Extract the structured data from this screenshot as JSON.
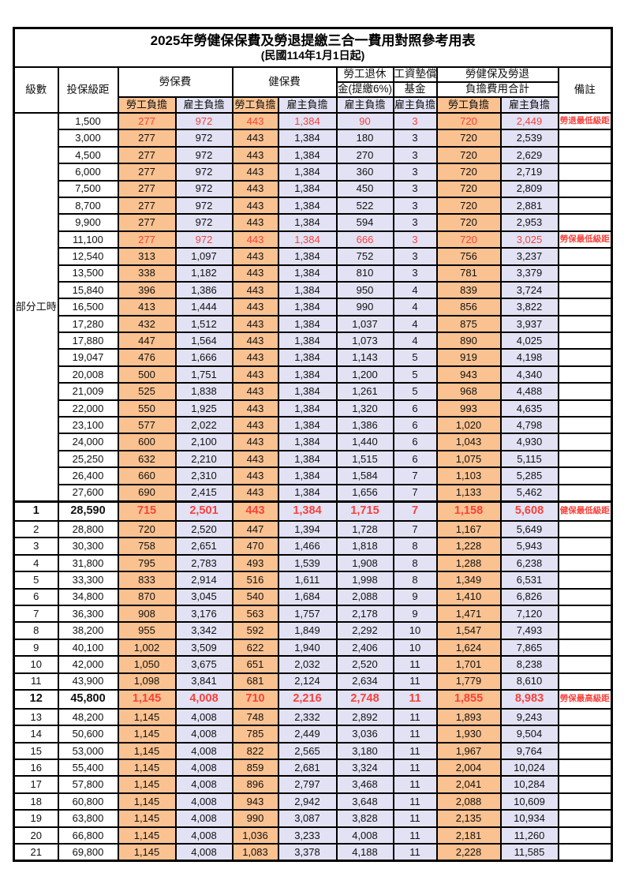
{
  "title": {
    "line1": "2025年勞健保保費及勞退提繳三合一費用對照參考用表",
    "line2": "(民國114年1月1日起)"
  },
  "header": {
    "grade": "級數",
    "bracket": "投保級距",
    "labor_insurance": "勞保費",
    "health_insurance": "健保費",
    "pension_line1": "勞工退休",
    "pension_line2": "金(提繳6%)",
    "wage_fund_line1": "工資墊償",
    "wage_fund_line2": "基金",
    "total_line1": "勞健保及勞退",
    "total_line2": "負擔費用合計",
    "remark": "備註",
    "employee_share": "勞工負擔",
    "employer_share": "雇主負擔"
  },
  "colors": {
    "employee_bg": "#FAC291",
    "employer_bg": "#E2E2F4",
    "highlight_text": "#F8423C",
    "grid": "#000000"
  },
  "part_time_label": "部分工時",
  "rows": [
    {
      "g": "部分工時",
      "gspan": 23,
      "b": "1,500",
      "v": [
        "277",
        "972",
        "443",
        "1,384",
        "90",
        "3",
        "720",
        "2,449"
      ],
      "r": "勞退最低級距",
      "hl": true
    },
    {
      "b": "3,000",
      "v": [
        "277",
        "972",
        "443",
        "1,384",
        "180",
        "3",
        "720",
        "2,539"
      ],
      "r": ""
    },
    {
      "b": "4,500",
      "v": [
        "277",
        "972",
        "443",
        "1,384",
        "270",
        "3",
        "720",
        "2,629"
      ],
      "r": ""
    },
    {
      "b": "6,000",
      "v": [
        "277",
        "972",
        "443",
        "1,384",
        "360",
        "3",
        "720",
        "2,719"
      ],
      "r": ""
    },
    {
      "b": "7,500",
      "v": [
        "277",
        "972",
        "443",
        "1,384",
        "450",
        "3",
        "720",
        "2,809"
      ],
      "r": ""
    },
    {
      "b": "8,700",
      "v": [
        "277",
        "972",
        "443",
        "1,384",
        "522",
        "3",
        "720",
        "2,881"
      ],
      "r": ""
    },
    {
      "b": "9,900",
      "v": [
        "277",
        "972",
        "443",
        "1,384",
        "594",
        "3",
        "720",
        "2,953"
      ],
      "r": ""
    },
    {
      "b": "11,100",
      "v": [
        "277",
        "972",
        "443",
        "1,384",
        "666",
        "3",
        "720",
        "3,025"
      ],
      "r": "勞保最低級距",
      "hl": true
    },
    {
      "b": "12,540",
      "v": [
        "313",
        "1,097",
        "443",
        "1,384",
        "752",
        "3",
        "756",
        "3,237"
      ],
      "r": ""
    },
    {
      "b": "13,500",
      "v": [
        "338",
        "1,182",
        "443",
        "1,384",
        "810",
        "3",
        "781",
        "3,379"
      ],
      "r": ""
    },
    {
      "b": "15,840",
      "v": [
        "396",
        "1,386",
        "443",
        "1,384",
        "950",
        "4",
        "839",
        "3,724"
      ],
      "r": ""
    },
    {
      "b": "16,500",
      "v": [
        "413",
        "1,444",
        "443",
        "1,384",
        "990",
        "4",
        "856",
        "3,822"
      ],
      "r": ""
    },
    {
      "b": "17,280",
      "v": [
        "432",
        "1,512",
        "443",
        "1,384",
        "1,037",
        "4",
        "875",
        "3,937"
      ],
      "r": ""
    },
    {
      "b": "17,880",
      "v": [
        "447",
        "1,564",
        "443",
        "1,384",
        "1,073",
        "4",
        "890",
        "4,025"
      ],
      "r": ""
    },
    {
      "b": "19,047",
      "v": [
        "476",
        "1,666",
        "443",
        "1,384",
        "1,143",
        "5",
        "919",
        "4,198"
      ],
      "r": ""
    },
    {
      "b": "20,008",
      "v": [
        "500",
        "1,751",
        "443",
        "1,384",
        "1,200",
        "5",
        "943",
        "4,340"
      ],
      "r": ""
    },
    {
      "b": "21,009",
      "v": [
        "525",
        "1,838",
        "443",
        "1,384",
        "1,261",
        "5",
        "968",
        "4,488"
      ],
      "r": ""
    },
    {
      "b": "22,000",
      "v": [
        "550",
        "1,925",
        "443",
        "1,384",
        "1,320",
        "6",
        "993",
        "4,635"
      ],
      "r": ""
    },
    {
      "b": "23,100",
      "v": [
        "577",
        "2,022",
        "443",
        "1,384",
        "1,386",
        "6",
        "1,020",
        "4,798"
      ],
      "r": ""
    },
    {
      "b": "24,000",
      "v": [
        "600",
        "2,100",
        "443",
        "1,384",
        "1,440",
        "6",
        "1,043",
        "4,930"
      ],
      "r": ""
    },
    {
      "b": "25,250",
      "v": [
        "632",
        "2,210",
        "443",
        "1,384",
        "1,515",
        "6",
        "1,075",
        "5,115"
      ],
      "r": ""
    },
    {
      "b": "26,400",
      "v": [
        "660",
        "2,310",
        "443",
        "1,384",
        "1,584",
        "7",
        "1,103",
        "5,285"
      ],
      "r": ""
    },
    {
      "b": "27,600",
      "v": [
        "690",
        "2,415",
        "443",
        "1,384",
        "1,656",
        "7",
        "1,133",
        "5,462"
      ],
      "r": ""
    },
    {
      "g": "1",
      "b": "28,590",
      "v": [
        "715",
        "2,501",
        "443",
        "1,384",
        "1,715",
        "7",
        "1,158",
        "5,608"
      ],
      "r": "健保最低級距",
      "hl": true,
      "bold": true,
      "thick": true
    },
    {
      "g": "2",
      "b": "28,800",
      "v": [
        "720",
        "2,520",
        "447",
        "1,394",
        "1,728",
        "7",
        "1,167",
        "5,649"
      ],
      "r": ""
    },
    {
      "g": "3",
      "b": "30,300",
      "v": [
        "758",
        "2,651",
        "470",
        "1,466",
        "1,818",
        "8",
        "1,228",
        "5,943"
      ],
      "r": ""
    },
    {
      "g": "4",
      "b": "31,800",
      "v": [
        "795",
        "2,783",
        "493",
        "1,539",
        "1,908",
        "8",
        "1,288",
        "6,238"
      ],
      "r": ""
    },
    {
      "g": "5",
      "b": "33,300",
      "v": [
        "833",
        "2,914",
        "516",
        "1,611",
        "1,998",
        "8",
        "1,349",
        "6,531"
      ],
      "r": ""
    },
    {
      "g": "6",
      "b": "34,800",
      "v": [
        "870",
        "3,045",
        "540",
        "1,684",
        "2,088",
        "9",
        "1,410",
        "6,826"
      ],
      "r": ""
    },
    {
      "g": "7",
      "b": "36,300",
      "v": [
        "908",
        "3,176",
        "563",
        "1,757",
        "2,178",
        "9",
        "1,471",
        "7,120"
      ],
      "r": ""
    },
    {
      "g": "8",
      "b": "38,200",
      "v": [
        "955",
        "3,342",
        "592",
        "1,849",
        "2,292",
        "10",
        "1,547",
        "7,493"
      ],
      "r": ""
    },
    {
      "g": "9",
      "b": "40,100",
      "v": [
        "1,002",
        "3,509",
        "622",
        "1,940",
        "2,406",
        "10",
        "1,624",
        "7,865"
      ],
      "r": ""
    },
    {
      "g": "10",
      "b": "42,000",
      "v": [
        "1,050",
        "3,675",
        "651",
        "2,032",
        "2,520",
        "11",
        "1,701",
        "8,238"
      ],
      "r": ""
    },
    {
      "g": "11",
      "b": "43,900",
      "v": [
        "1,098",
        "3,841",
        "681",
        "2,124",
        "2,634",
        "11",
        "1,779",
        "8,610"
      ],
      "r": ""
    },
    {
      "g": "12",
      "b": "45,800",
      "v": [
        "1,145",
        "4,008",
        "710",
        "2,216",
        "2,748",
        "11",
        "1,855",
        "8,983"
      ],
      "r": "勞保最高級距",
      "hl": true,
      "bold": true
    },
    {
      "g": "13",
      "b": "48,200",
      "v": [
        "1,145",
        "4,008",
        "748",
        "2,332",
        "2,892",
        "11",
        "1,893",
        "9,243"
      ],
      "r": ""
    },
    {
      "g": "14",
      "b": "50,600",
      "v": [
        "1,145",
        "4,008",
        "785",
        "2,449",
        "3,036",
        "11",
        "1,930",
        "9,504"
      ],
      "r": ""
    },
    {
      "g": "15",
      "b": "53,000",
      "v": [
        "1,145",
        "4,008",
        "822",
        "2,565",
        "3,180",
        "11",
        "1,967",
        "9,764"
      ],
      "r": ""
    },
    {
      "g": "16",
      "b": "55,400",
      "v": [
        "1,145",
        "4,008",
        "859",
        "2,681",
        "3,324",
        "11",
        "2,004",
        "10,024"
      ],
      "r": ""
    },
    {
      "g": "17",
      "b": "57,800",
      "v": [
        "1,145",
        "4,008",
        "896",
        "2,797",
        "3,468",
        "11",
        "2,041",
        "10,284"
      ],
      "r": ""
    },
    {
      "g": "18",
      "b": "60,800",
      "v": [
        "1,145",
        "4,008",
        "943",
        "2,942",
        "3,648",
        "11",
        "2,088",
        "10,609"
      ],
      "r": ""
    },
    {
      "g": "19",
      "b": "63,800",
      "v": [
        "1,145",
        "4,008",
        "990",
        "3,087",
        "3,828",
        "11",
        "2,135",
        "10,934"
      ],
      "r": ""
    },
    {
      "g": "20",
      "b": "66,800",
      "v": [
        "1,145",
        "4,008",
        "1,036",
        "3,233",
        "4,008",
        "11",
        "2,181",
        "11,260"
      ],
      "r": ""
    },
    {
      "g": "21",
      "b": "69,800",
      "v": [
        "1,145",
        "4,008",
        "1,083",
        "3,378",
        "4,188",
        "11",
        "2,228",
        "11,585"
      ],
      "r": ""
    }
  ]
}
